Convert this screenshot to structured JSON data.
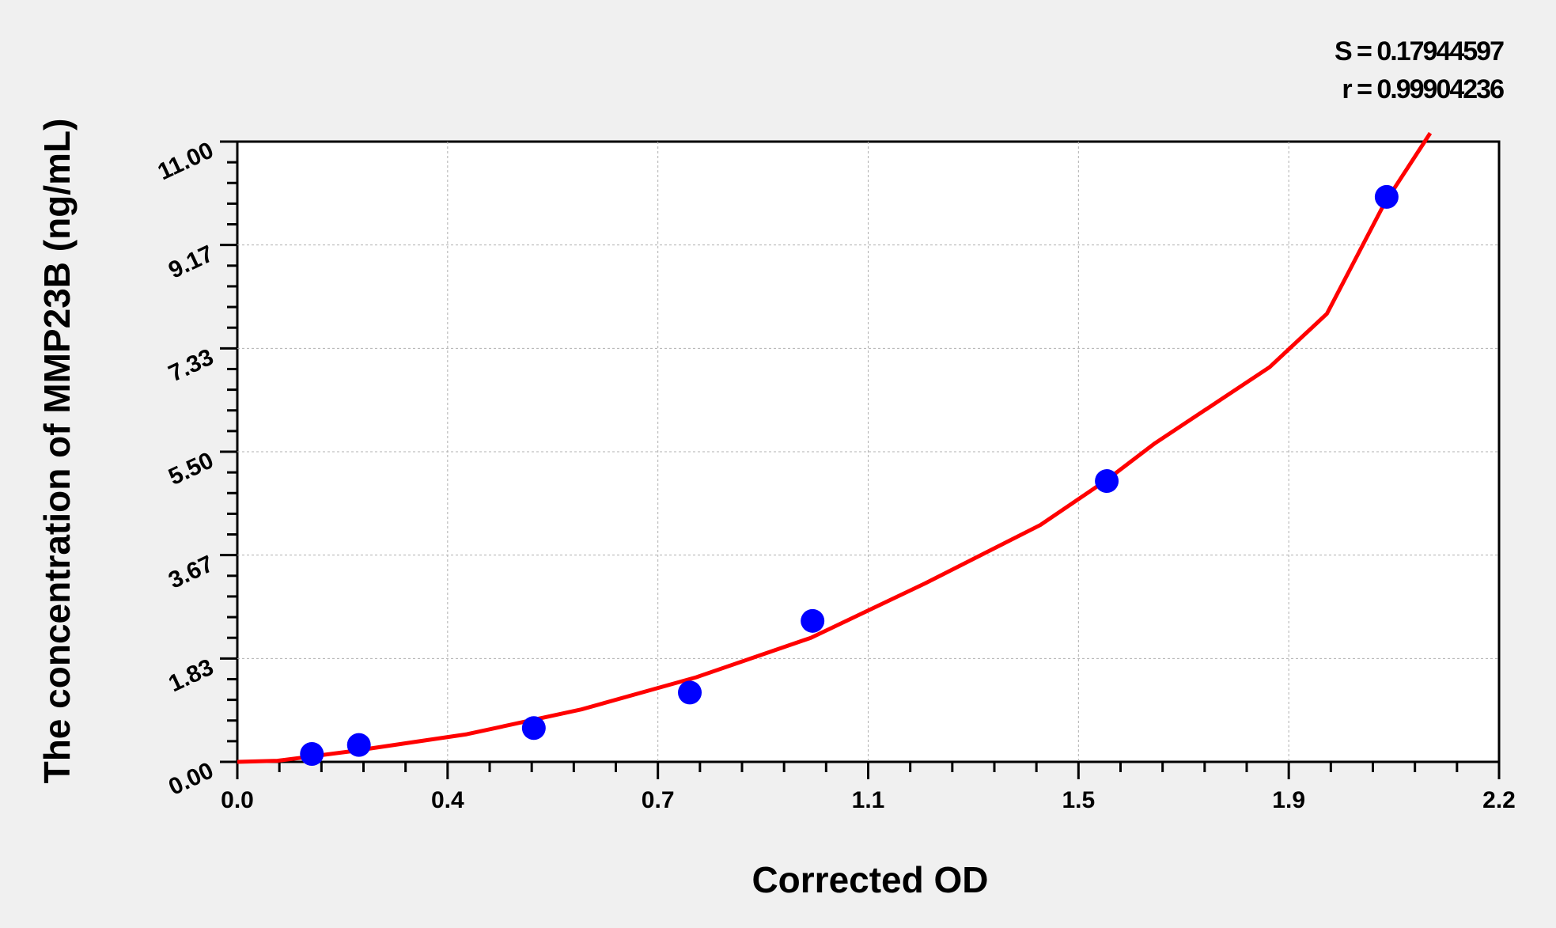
{
  "chart_data": {
    "type": "scatter",
    "title": "",
    "xlabel": "Corrected OD",
    "ylabel": "The concentration of MMP23B (ng/mL)",
    "xlim": [
      0,
      2.2
    ],
    "ylim": [
      0,
      11
    ],
    "x_tick_labels": [
      "0.0",
      "0.4",
      "0.7",
      "1.1",
      "1.5",
      "1.9",
      "2.2"
    ],
    "y_tick_labels": [
      "0.00",
      "1.83",
      "3.67",
      "5.50",
      "7.33",
      "9.17",
      "11.00"
    ],
    "grid": true,
    "stats": {
      "s_label": "S = 0.17944597",
      "r_label": "r = 0.99904236"
    },
    "points": {
      "x": [
        0.13,
        0.212,
        0.517,
        0.789,
        1.003,
        1.516,
        2.004
      ],
      "y": [
        0.14,
        0.3,
        0.6,
        1.23,
        2.5,
        4.98,
        10.02
      ],
      "color": "#0000ff"
    },
    "fit_curve": {
      "x": [
        0,
        0.07,
        0.2,
        0.4,
        0.6,
        0.8,
        1.0,
        1.2,
        1.4,
        1.516,
        1.6,
        1.8,
        1.9,
        2.0,
        2.08
      ],
      "y": [
        0,
        0.02,
        0.19,
        0.49,
        0.93,
        1.5,
        2.2,
        3.17,
        4.2,
        5.0,
        5.65,
        7.0,
        7.95,
        9.9,
        11.15
      ],
      "color": "#ff0000"
    }
  }
}
